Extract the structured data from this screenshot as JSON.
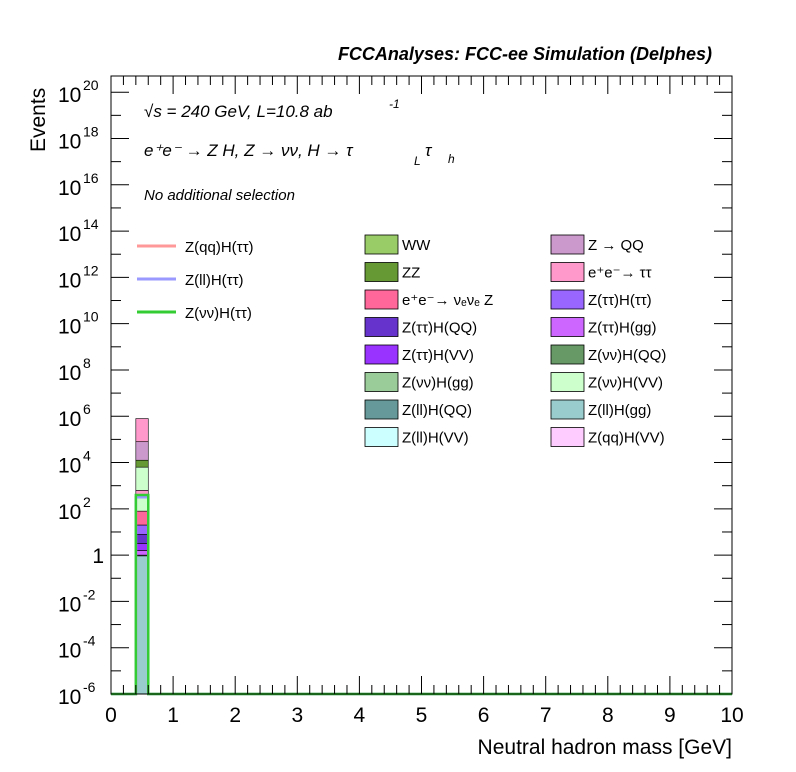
{
  "chart_data": {
    "type": "bar",
    "title": "FCCAnalyses: FCC-ee Simulation (Delphes)",
    "xlabel": "Neutral hadron mass [GeV]",
    "ylabel": "Events",
    "xlim": [
      0,
      10
    ],
    "ylim_log10": [
      -6,
      20.7
    ],
    "y_scale": "log",
    "x_ticks": [
      "0",
      "1",
      "2",
      "3",
      "4",
      "5",
      "6",
      "7",
      "8",
      "9",
      "10"
    ],
    "y_ticks": [
      {
        "base": "10",
        "exp": "20",
        "log": 20
      },
      {
        "base": "10",
        "exp": "18",
        "log": 18
      },
      {
        "base": "10",
        "exp": "16",
        "log": 16
      },
      {
        "base": "10",
        "exp": "14",
        "log": 14
      },
      {
        "base": "10",
        "exp": "12",
        "log": 12
      },
      {
        "base": "10",
        "exp": "10",
        "log": 10
      },
      {
        "base": "10",
        "exp": "8",
        "log": 8
      },
      {
        "base": "10",
        "exp": "6",
        "log": 6
      },
      {
        "base": "10",
        "exp": "4",
        "log": 4
      },
      {
        "base": "10",
        "exp": "2",
        "log": 2
      },
      {
        "base": "1",
        "exp": "",
        "log": 0
      },
      {
        "base": "10",
        "exp": "-2",
        "log": -2
      },
      {
        "base": "10",
        "exp": "-4",
        "log": -4
      },
      {
        "base": "10",
        "exp": "-6",
        "log": -6
      }
    ],
    "annotations": {
      "energy": "√s = 240 GeV, L=10.8 ab",
      "energy_sup": "-1",
      "process": "e⁺e⁻ → Z H, Z → νν, H → τ",
      "process_sub1": "L",
      "process_tau": "τ",
      "process_sub2": "h",
      "selection": "No additional selection"
    },
    "bin": {
      "x_low": 0.4,
      "x_high": 0.6
    },
    "stack_colors": {
      "WW": "#99cc66",
      "ZZ": "#669933",
      "Z_QQ": "#cc99cc",
      "ee_tautau": "#ff99cc",
      "ee_nunuZ": "#ff6699",
      "tautau_tautau": "#9966ff",
      "tautau_QQ": "#6633cc",
      "tautau_gg": "#cc66ff",
      "tautau_VV": "#9933ff",
      "nunu_QQ": "#669966",
      "nunu_gg": "#99cc99",
      "nunu_VV": "#ccffcc",
      "ll_QQ": "#669999",
      "ll_gg": "#99cccc",
      "ll_VV": "#ccffff",
      "qq_VV": "#ffccff"
    },
    "stack_layers": [
      {
        "color_key": "ll_gg",
        "log_low": -6.0,
        "log_high": 0.0
      },
      {
        "color_key": "nunu_gg",
        "log_low": 0.0,
        "log_high": 0.0
      },
      {
        "color_key": "tautau_gg",
        "log_low": 0.0,
        "log_high": 0.2
      },
      {
        "color_key": "tautau_VV",
        "log_low": 0.2,
        "log_high": 0.5
      },
      {
        "color_key": "tautau_QQ",
        "log_low": 0.5,
        "log_high": 0.9
      },
      {
        "color_key": "tautau_tautau",
        "log_low": 0.9,
        "log_high": 1.3
      },
      {
        "color_key": "ee_nunuZ",
        "log_low": 1.3,
        "log_high": 1.9
      },
      {
        "color_key": "nunu_VV",
        "log_low": 1.9,
        "log_high": 2.6
      },
      {
        "color_key": "ee_tautau",
        "log_low": 2.6,
        "log_high": 2.8
      },
      {
        "color_key": "nunu_VV",
        "log_low": 2.8,
        "log_high": 3.8
      },
      {
        "color_key": "ZZ",
        "log_low": 3.8,
        "log_high": 4.1
      },
      {
        "color_key": "Z_QQ",
        "log_low": 4.1,
        "log_high": 4.9
      },
      {
        "color_key": "ee_tautau",
        "log_low": 4.9,
        "log_high": 5.9
      }
    ],
    "signal_lines": [
      {
        "name": "Z(qq)H(ττ)",
        "color": "#ff9999",
        "log_value": 2.5
      },
      {
        "name": "Z(ll)H(ττ)",
        "color": "#9999ff",
        "log_value": 2.5
      },
      {
        "name": "Z(νν)H(ττ)",
        "color": "#33cc33",
        "log_value": 2.6
      }
    ],
    "legend_signals": [
      {
        "label": "Z(qq)H(ττ)",
        "color": "#ff9999"
      },
      {
        "label": "Z(ll)H(ττ)",
        "color": "#9999ff"
      },
      {
        "label": "Z(νν)H(ττ)",
        "color": "#33cc33"
      }
    ],
    "legend_backgrounds": [
      {
        "label": "WW",
        "color": "#99cc66"
      },
      {
        "label": "Z → QQ",
        "color": "#cc99cc"
      },
      {
        "label": "ZZ",
        "color": "#669933"
      },
      {
        "label": "e⁺e⁻→ ττ",
        "color": "#ff99cc"
      },
      {
        "label": "e⁺e⁻→ νₑνₑ Z",
        "color": "#ff6699"
      },
      {
        "label": "Z(ττ)H(ττ)",
        "color": "#9966ff"
      },
      {
        "label": "Z(ττ)H(QQ)",
        "color": "#6633cc"
      },
      {
        "label": "Z(ττ)H(gg)",
        "color": "#cc66ff"
      },
      {
        "label": "Z(ττ)H(VV)",
        "color": "#9933ff"
      },
      {
        "label": "Z(νν)H(QQ)",
        "color": "#669966"
      },
      {
        "label": "Z(νν)H(gg)",
        "color": "#99cc99"
      },
      {
        "label": "Z(νν)H(VV)",
        "color": "#ccffcc"
      },
      {
        "label": "Z(ll)H(QQ)",
        "color": "#669999"
      },
      {
        "label": "Z(ll)H(gg)",
        "color": "#99cccc"
      },
      {
        "label": "Z(ll)H(VV)",
        "color": "#ccffff"
      },
      {
        "label": "Z(qq)H(VV)",
        "color": "#ffccff"
      }
    ]
  }
}
